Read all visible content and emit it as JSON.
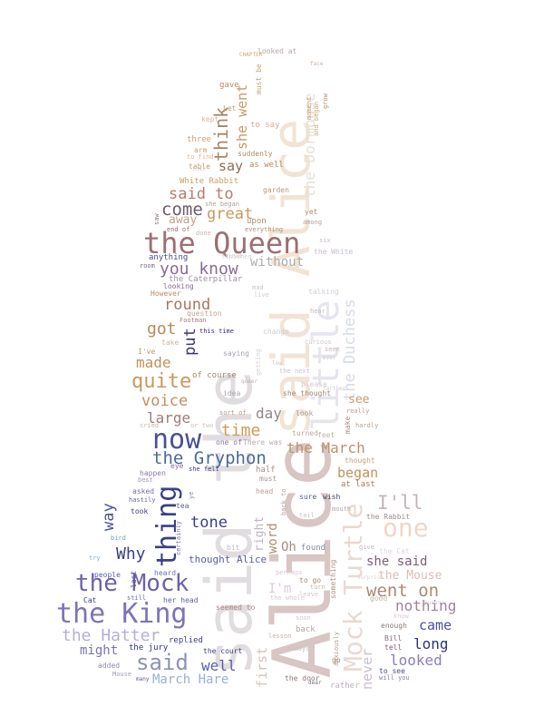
{
  "wordcloud": {
    "words": [
      {
        "text": "Alice",
        "color": "#d8c6c4"
      },
      {
        "text": "said the",
        "color": "#e0dcdf"
      },
      {
        "text": "said Alice",
        "color": "#f2e4d5"
      },
      {
        "text": "little",
        "color": "#e6e4ee"
      },
      {
        "text": "the Queen",
        "color": "#9b7074"
      },
      {
        "text": "Mock Turtle",
        "color": "#e9d9d3"
      },
      {
        "text": "the Duchess",
        "color": "#d8dbe9"
      },
      {
        "text": "the King",
        "color": "#7d74b8"
      },
      {
        "text": "the Mock",
        "color": "#6e62a8"
      },
      {
        "text": "thing",
        "color": "#3b3f85"
      },
      {
        "text": "now",
        "color": "#4b4f9a"
      },
      {
        "text": "the Gryphon",
        "color": "#4a6a9a"
      },
      {
        "text": "said",
        "color": "#8c93b5"
      },
      {
        "text": "the Hatter",
        "color": "#b3b0d8"
      },
      {
        "text": "one",
        "color": "#efd7c8"
      },
      {
        "text": "went on",
        "color": "#a98b74"
      },
      {
        "text": "I'll",
        "color": "#c4b6b6"
      },
      {
        "text": "the March",
        "color": "#c0916a"
      },
      {
        "text": "quite",
        "color": "#c8995e"
      },
      {
        "text": "you know",
        "color": "#8a6b95"
      },
      {
        "text": "said to",
        "color": "#b57d6c"
      },
      {
        "text": "come",
        "color": "#6e5a6e"
      },
      {
        "text": "great",
        "color": "#c7985c"
      },
      {
        "text": "think",
        "color": "#a48868"
      },
      {
        "text": "she went",
        "color": "#c89a69"
      },
      {
        "text": "say",
        "color": "#8a6f55"
      },
      {
        "text": "the Dormouse",
        "color": "#e8e0d5"
      },
      {
        "text": "round",
        "color": "#a07a62"
      },
      {
        "text": "got",
        "color": "#b68a58"
      },
      {
        "text": "made",
        "color": "#c28f5a"
      },
      {
        "text": "voice",
        "color": "#c88e5c"
      },
      {
        "text": "large",
        "color": "#9c7d7e"
      },
      {
        "text": "time",
        "color": "#d09a5a"
      },
      {
        "text": "day",
        "color": "#8e8888"
      },
      {
        "text": "without",
        "color": "#aeabb0"
      },
      {
        "text": "tone",
        "color": "#3b3f85"
      },
      {
        "text": "Why",
        "color": "#3b3f85"
      },
      {
        "text": "way",
        "color": "#4b4f9a"
      },
      {
        "text": "put",
        "color": "#3e3670"
      },
      {
        "text": "began",
        "color": "#c29160"
      },
      {
        "text": "nothing",
        "color": "#a0839a"
      },
      {
        "text": "came",
        "color": "#4b4f9a"
      },
      {
        "text": "long",
        "color": "#2e3478"
      },
      {
        "text": "looked",
        "color": "#8d7dbf"
      },
      {
        "text": "well",
        "color": "#5b5ea8"
      },
      {
        "text": "March Hare",
        "color": "#9ab0d0"
      },
      {
        "text": "might",
        "color": "#7a74b0"
      },
      {
        "text": "first",
        "color": "#d6c4bb"
      },
      {
        "text": "never",
        "color": "#cbbfcf"
      },
      {
        "text": "word",
        "color": "#ab9074"
      },
      {
        "text": "see",
        "color": "#c79a6c"
      },
      {
        "text": "Oh",
        "color": "#a38f84"
      },
      {
        "text": "I'm",
        "color": "#d9ccd8"
      },
      {
        "text": "she said",
        "color": "#7a5e78"
      },
      {
        "text": "the Mouse",
        "color": "#d8c0b4"
      },
      {
        "text": "thought Alice",
        "color": "#5b5ea8"
      },
      {
        "text": "right",
        "color": "#c0b2c6"
      },
      {
        "text": "away",
        "color": "#c6a08a"
      },
      {
        "text": "White Rabbit",
        "color": "#c8a06a"
      },
      {
        "text": "the Caterpillar",
        "color": "#a18fa8"
      },
      {
        "text": "of course",
        "color": "#9e8a6e"
      },
      {
        "text": "CHAPTER",
        "color": "#cfa470"
      },
      {
        "text": "looked at",
        "color": "#b8a8a8"
      },
      {
        "text": "must be",
        "color": "#c9a073"
      },
      {
        "text": "gave",
        "color": "#b88a66"
      },
      {
        "text": "Let",
        "color": "#c49a66"
      },
      {
        "text": "to say",
        "color": "#d3b08e"
      },
      {
        "text": "kept",
        "color": "#d9b89a"
      },
      {
        "text": "arm",
        "color": "#c6a47a"
      },
      {
        "text": "three",
        "color": "#cca373"
      },
      {
        "text": "to find",
        "color": "#d9b88c"
      },
      {
        "text": "suddenly",
        "color": "#b08a5e"
      },
      {
        "text": "as well",
        "color": "#b3895c"
      },
      {
        "text": "table",
        "color": "#c29a74"
      },
      {
        "text": "garden",
        "color": "#b89670"
      },
      {
        "text": "she began",
        "color": "#b29a94"
      },
      {
        "text": "upon",
        "color": "#b08a6e"
      },
      {
        "text": "yet",
        "color": "#a88b6e"
      },
      {
        "text": "among",
        "color": "#b8a0a0"
      },
      {
        "text": "saw",
        "color": "#8a7a7a"
      },
      {
        "text": "end of",
        "color": "#8a7070"
      },
      {
        "text": "done",
        "color": "#c6b6b6"
      },
      {
        "text": "everything",
        "color": "#a89078"
      },
      {
        "text": "anything",
        "color": "#4a4f80"
      },
      {
        "text": "room",
        "color": "#7c6a84"
      },
      {
        "text": "looking",
        "color": "#8a6a8a"
      },
      {
        "text": "However",
        "color": "#b28a6c"
      },
      {
        "text": "question",
        "color": "#c9a090"
      },
      {
        "text": "Footman",
        "color": "#b07c78"
      },
      {
        "text": "this time",
        "color": "#3a2f6e"
      },
      {
        "text": "saying",
        "color": "#a6a0b0"
      },
      {
        "text": "I've",
        "color": "#c09878"
      },
      {
        "text": "take",
        "color": "#d0b2a0"
      },
      {
        "text": "change",
        "color": "#cfc8d2"
      },
      {
        "text": "idea",
        "color": "#aca4a8"
      },
      {
        "text": "sort of",
        "color": "#b69a86"
      },
      {
        "text": "cried",
        "color": "#c6b4a8"
      },
      {
        "text": "or two",
        "color": "#d6c0b6"
      },
      {
        "text": "one of",
        "color": "#8a7aa0"
      },
      {
        "text": "There was",
        "color": "#b8a8b0"
      },
      {
        "text": "she thought",
        "color": "#a08878"
      },
      {
        "text": "turned",
        "color": "#bca69a"
      },
      {
        "text": "feet",
        "color": "#c4ae9e"
      },
      {
        "text": "thought",
        "color": "#c9a080"
      },
      {
        "text": "at last",
        "color": "#a67a5a"
      },
      {
        "text": "she felt",
        "color": "#3e3f80"
      },
      {
        "text": "eye",
        "color": "#8a6e9a"
      },
      {
        "text": "half",
        "color": "#9e8f8a"
      },
      {
        "text": "must",
        "color": "#a89690"
      },
      {
        "text": "head",
        "color": "#b4a29a"
      },
      {
        "text": "happen",
        "color": "#8c7ca2"
      },
      {
        "text": "best",
        "color": "#a49ab6"
      },
      {
        "text": "asked",
        "color": "#7d6e9a"
      },
      {
        "text": "hastily",
        "color": "#6a6aa0"
      },
      {
        "text": "tea",
        "color": "#5e5e98"
      },
      {
        "text": "took",
        "color": "#3b3f85"
      },
      {
        "text": "sure",
        "color": "#4f5f90"
      },
      {
        "text": "wish",
        "color": "#3a3e70"
      },
      {
        "text": "the Rabbit",
        "color": "#a08c88"
      },
      {
        "text": "mouth",
        "color": "#b5a6a8"
      },
      {
        "text": "tail",
        "color": "#cfc0c0"
      },
      {
        "text": "found",
        "color": "#8a8aa8"
      },
      {
        "text": "give",
        "color": "#c6b6c6"
      },
      {
        "text": "the Cat",
        "color": "#ded4e0"
      },
      {
        "text": "the White",
        "color": "#c6bccc"
      },
      {
        "text": "the next",
        "color": "#c8c0cc"
      },
      {
        "text": "please",
        "color": "#d2c8d0"
      },
      {
        "text": "seen",
        "color": "#c7b5b0"
      },
      {
        "text": "curious",
        "color": "#d0c4c8"
      },
      {
        "text": "talking",
        "color": "#d6cdd3"
      },
      {
        "text": "hear",
        "color": "#c4b8bc"
      },
      {
        "text": "mad",
        "color": "#cfc6cd"
      },
      {
        "text": "live",
        "color": "#d6cad2"
      },
      {
        "text": "finished",
        "color": "#d8ced4"
      },
      {
        "text": "six",
        "color": "#c8bcc4"
      },
      {
        "text": "really",
        "color": "#b6a08c"
      },
      {
        "text": "make",
        "color": "#a88c82"
      },
      {
        "text": "hardly",
        "color": "#b8a090"
      },
      {
        "text": "bird",
        "color": "#7a9ab8"
      },
      {
        "text": "try",
        "color": "#8ab0c8"
      },
      {
        "text": "people",
        "color": "#5b5ea8"
      },
      {
        "text": "certainly",
        "color": "#7a74b0"
      },
      {
        "text": "bit",
        "color": "#c6b6c6"
      },
      {
        "text": "perhaps",
        "color": "#d8c8d6"
      },
      {
        "text": "heard",
        "color": "#6a74a8"
      },
      {
        "text": "last",
        "color": "#4a4f9a"
      },
      {
        "text": "Cat",
        "color": "#3b3f85"
      },
      {
        "text": "still",
        "color": "#6a6aa0"
      },
      {
        "text": "her head",
        "color": "#5b5ea8"
      },
      {
        "text": "seemed to",
        "color": "#a88a80"
      },
      {
        "text": "the whole",
        "color": "#d6c8d0"
      },
      {
        "text": "to go",
        "color": "#a78a6e"
      },
      {
        "text": "turn",
        "color": "#c8b4a6"
      },
      {
        "text": "leave",
        "color": "#d8c8c4"
      },
      {
        "text": "something",
        "color": "#b09080"
      },
      {
        "text": "soon",
        "color": "#d0c4c8"
      },
      {
        "text": "back",
        "color": "#b8a8a4"
      },
      {
        "text": "lesson",
        "color": "#c6b4a6"
      },
      {
        "text": "always",
        "color": "#c8bcc4"
      },
      {
        "text": "anxiously",
        "color": "#b29a90"
      },
      {
        "text": "good",
        "color": "#c6b4a2"
      },
      {
        "text": "enough",
        "color": "#8a7a76"
      },
      {
        "text": "know",
        "color": "#d8cad6"
      },
      {
        "text": "Bill",
        "color": "#8a6e88"
      },
      {
        "text": "tell",
        "color": "#7a5e78"
      },
      {
        "text": "to see",
        "color": "#4a4f80"
      },
      {
        "text": "will you",
        "color": "#8a7ab0"
      },
      {
        "text": "Susan",
        "color": "#d6c4d6"
      },
      {
        "text": "replied",
        "color": "#3b3f85"
      },
      {
        "text": "the jury",
        "color": "#2e3478"
      },
      {
        "text": "the court",
        "color": "#3b3f85"
      },
      {
        "text": "added",
        "color": "#8a8ab0"
      },
      {
        "text": "Mouse",
        "color": "#a49ab6"
      },
      {
        "text": "many",
        "color": "#5a5a88"
      },
      {
        "text": "the door",
        "color": "#8a7a70"
      },
      {
        "text": "dear",
        "color": "#7a6a80"
      },
      {
        "text": "rather",
        "color": "#c0b0c0"
      },
      {
        "text": "face",
        "color": "#d0b49a"
      },
      {
        "text": "grow",
        "color": "#b48a68"
      },
      {
        "text": "moment",
        "color": "#c09a74"
      },
      {
        "text": "and began",
        "color": "#c8a87a"
      },
      {
        "text": "queer",
        "color": "#b8b0b8"
      },
      {
        "text": "surprise",
        "color": "#dcd0d8"
      },
      {
        "text": "back to",
        "color": "#b8a09a"
      },
      {
        "text": "ye",
        "color": "#8a8ab0"
      },
      {
        "text": "go",
        "color": "#a88068"
      },
      {
        "text": "getting",
        "color": "#d8d0d8"
      },
      {
        "text": "farther",
        "color": "#d6ccd4"
      },
      {
        "text": "ever",
        "color": "#cfc4cc"
      },
      {
        "text": "look",
        "color": "#a69a98"
      },
      {
        "text": "tired",
        "color": "#d8c8c0"
      },
      {
        "text": "low",
        "color": "#cfc0c4"
      },
      {
        "text": "that",
        "color": "#d2c6cc"
      }
    ]
  }
}
